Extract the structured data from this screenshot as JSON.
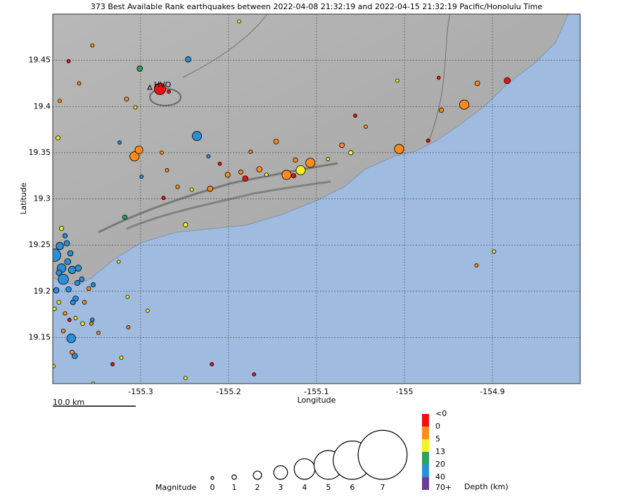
{
  "chart_data": {
    "type": "scatter",
    "title": "373 Best Available Rank earthquakes between 2022-04-08 21:32:19 and 2022-04-15 21:32:19 Pacific/Honolulu Time",
    "xlabel": "Longitude",
    "ylabel": "Latitude",
    "xlim": [
      -155.4,
      -154.8
    ],
    "ylim": [
      19.1,
      19.5
    ],
    "xticks": [
      -155.3,
      -155.2,
      -155.1,
      -155,
      -154.9
    ],
    "yticks": [
      19.15,
      19.2,
      19.25,
      19.3,
      19.35,
      19.4,
      19.45
    ],
    "grid": true,
    "annotations": {
      "station": "HVO",
      "scale": "10.0 km"
    },
    "x": [
      -155.278,
      -155.236,
      -155.307,
      -155.302,
      -155.134,
      -155.118,
      -155.107,
      -155.006,
      -154.932,
      -154.883,
      -154.917,
      -154.958,
      -155.246,
      -155.301,
      -155.221,
      -155.201,
      -155.181,
      -155.165,
      -155.146,
      -155.071,
      -155.061,
      -155.124,
      -155.126,
      -155.318,
      -155.249,
      -155.394,
      -155.316,
      -155.379,
      -154.898,
      -154.918,
      -155.355,
      -155.382,
      -155.37,
      -155.392,
      -155.306,
      -155.268,
      -155.276,
      -155.27,
      -155.223,
      -155.324,
      -155.299,
      -155.274,
      -155.258,
      -155.242,
      -155.21,
      -155.186,
      -155.175,
      -155.157,
      -155.087,
      -155.056,
      -155.044,
      -155.008,
      -154.973,
      -154.961,
      -155.188,
      -155.219,
      -155.249,
      -155.171,
      -155.292,
      -155.315,
      -155.322,
      -155.332,
      -155.314,
      -155.354,
      -155.325,
      -155.348,
      -155.356,
      -155.398,
      -155.388,
      -155.39,
      -155.392,
      -155.384,
      -155.378,
      -155.371,
      -155.396,
      -155.382,
      -155.374,
      -155.372,
      -155.367,
      -155.377,
      -155.39,
      -155.386,
      -155.38,
      -155.393,
      -155.398,
      -155.386,
      -155.375,
      -155.378,
      -155.364,
      -155.359,
      -155.354,
      -155.366,
      -155.388,
      -155.399,
      -155.381,
      -155.374,
      -155.355,
      -155.393,
      -155.383
    ],
    "series": [
      {
        "name": "earthquakes",
        "values": [
          19.419,
          19.368,
          19.346,
          19.353,
          19.326,
          19.331,
          19.339,
          19.354,
          19.402,
          19.428,
          19.425,
          19.396,
          19.451,
          19.441,
          19.311,
          19.326,
          19.322,
          19.332,
          19.362,
          19.358,
          19.35,
          19.342,
          19.325,
          19.28,
          19.272,
          19.366,
          19.408,
          19.149,
          19.243,
          19.228,
          19.466,
          19.449,
          19.425,
          19.406,
          19.399,
          19.416,
          19.35,
          19.331,
          19.346,
          19.361,
          19.324,
          19.301,
          19.313,
          19.31,
          19.338,
          19.329,
          19.351,
          19.326,
          19.343,
          19.39,
          19.378,
          19.428,
          19.363,
          19.431,
          19.492,
          19.121,
          19.106,
          19.11,
          19.179,
          19.194,
          19.128,
          19.121,
          19.161,
          19.1,
          19.232,
          19.155,
          19.165,
          19.239,
          19.213,
          19.225,
          19.249,
          19.252,
          19.223,
          19.225,
          19.201,
          19.202,
          19.192,
          19.209,
          19.213,
          19.188,
          19.268,
          19.26,
          19.241,
          19.188,
          19.181,
          19.176,
          19.13,
          19.134,
          19.188,
          19.203,
          19.207,
          19.165,
          19.157,
          19.119,
          19.169,
          19.171,
          19.169,
          19.22,
          19.232
        ],
        "sizes": [
          2.6,
          2.2,
          2.2,
          1.9,
          2.2,
          2.2,
          2.2,
          2.2,
          2.2,
          1.5,
          1.1,
          1,
          1.3,
          1.3,
          1.3,
          1.2,
          1.3,
          1.3,
          1.1,
          1.1,
          1,
          1,
          1,
          1,
          1,
          0.9,
          0.9,
          2.1,
          0.6,
          0.6,
          0.6,
          0.6,
          0.6,
          0.6,
          0.6,
          0.6,
          0.6,
          0.6,
          0.6,
          0.6,
          0.6,
          0.6,
          0.7,
          0.6,
          0.6,
          0.9,
          0.6,
          0.7,
          0.6,
          0.6,
          0.6,
          0.5,
          0.6,
          0.5,
          0.5,
          0.6,
          0.6,
          0.6,
          0.5,
          0.5,
          0.6,
          0.6,
          0.6,
          0.5,
          0.5,
          0.6,
          0.6,
          2.8,
          2.4,
          2.1,
          1.8,
          1.3,
          1.8,
          1.5,
          1.3,
          1.3,
          1.3,
          1.2,
          1.1,
          1.1,
          0.9,
          1,
          1.3,
          0.8,
          0.7,
          0.7,
          1.3,
          0.9,
          0.8,
          0.8,
          0.9,
          0.8,
          0.8,
          0.5,
          0.6,
          0.6,
          0.8,
          1.3,
          1.5
        ],
        "depths": [
          -0.5,
          25,
          2,
          3,
          2,
          7,
          3,
          2,
          3,
          -0.3,
          2,
          3,
          22,
          15,
          2,
          2,
          -0.2,
          3,
          2,
          3,
          6,
          4,
          -0.1,
          15,
          6,
          7,
          3,
          25,
          7,
          3,
          3,
          -0.1,
          3,
          3,
          7,
          -0.1,
          3,
          3,
          25,
          25,
          25,
          -0.1,
          3,
          7,
          -0.1,
          3,
          3,
          7,
          7,
          -0.1,
          3,
          7,
          -0.1,
          -0.1,
          7,
          -0.1,
          7,
          -0.1,
          7,
          7,
          7,
          -0.1,
          3,
          7,
          7,
          3,
          3,
          25,
          25,
          25,
          25,
          25,
          25,
          25,
          25,
          25,
          25,
          25,
          25,
          25,
          7,
          25,
          25,
          7,
          7,
          3,
          25,
          3,
          3,
          3,
          25,
          7,
          3,
          7,
          -0.1,
          7,
          25,
          25,
          25
        ]
      }
    ],
    "size_legend": {
      "title": "Magnitude",
      "values": [
        0,
        1,
        2,
        3,
        4,
        5,
        6,
        7
      ]
    },
    "color_legend": {
      "title": "Depth (km)",
      "ticks": [
        "<0",
        0,
        5,
        13,
        20,
        40,
        "70+"
      ],
      "colors": [
        "#ee1111",
        "#ff8c1a",
        "#f5f022",
        "#2ca25f",
        "#2b8fd8",
        "#6a3d9a"
      ]
    }
  }
}
